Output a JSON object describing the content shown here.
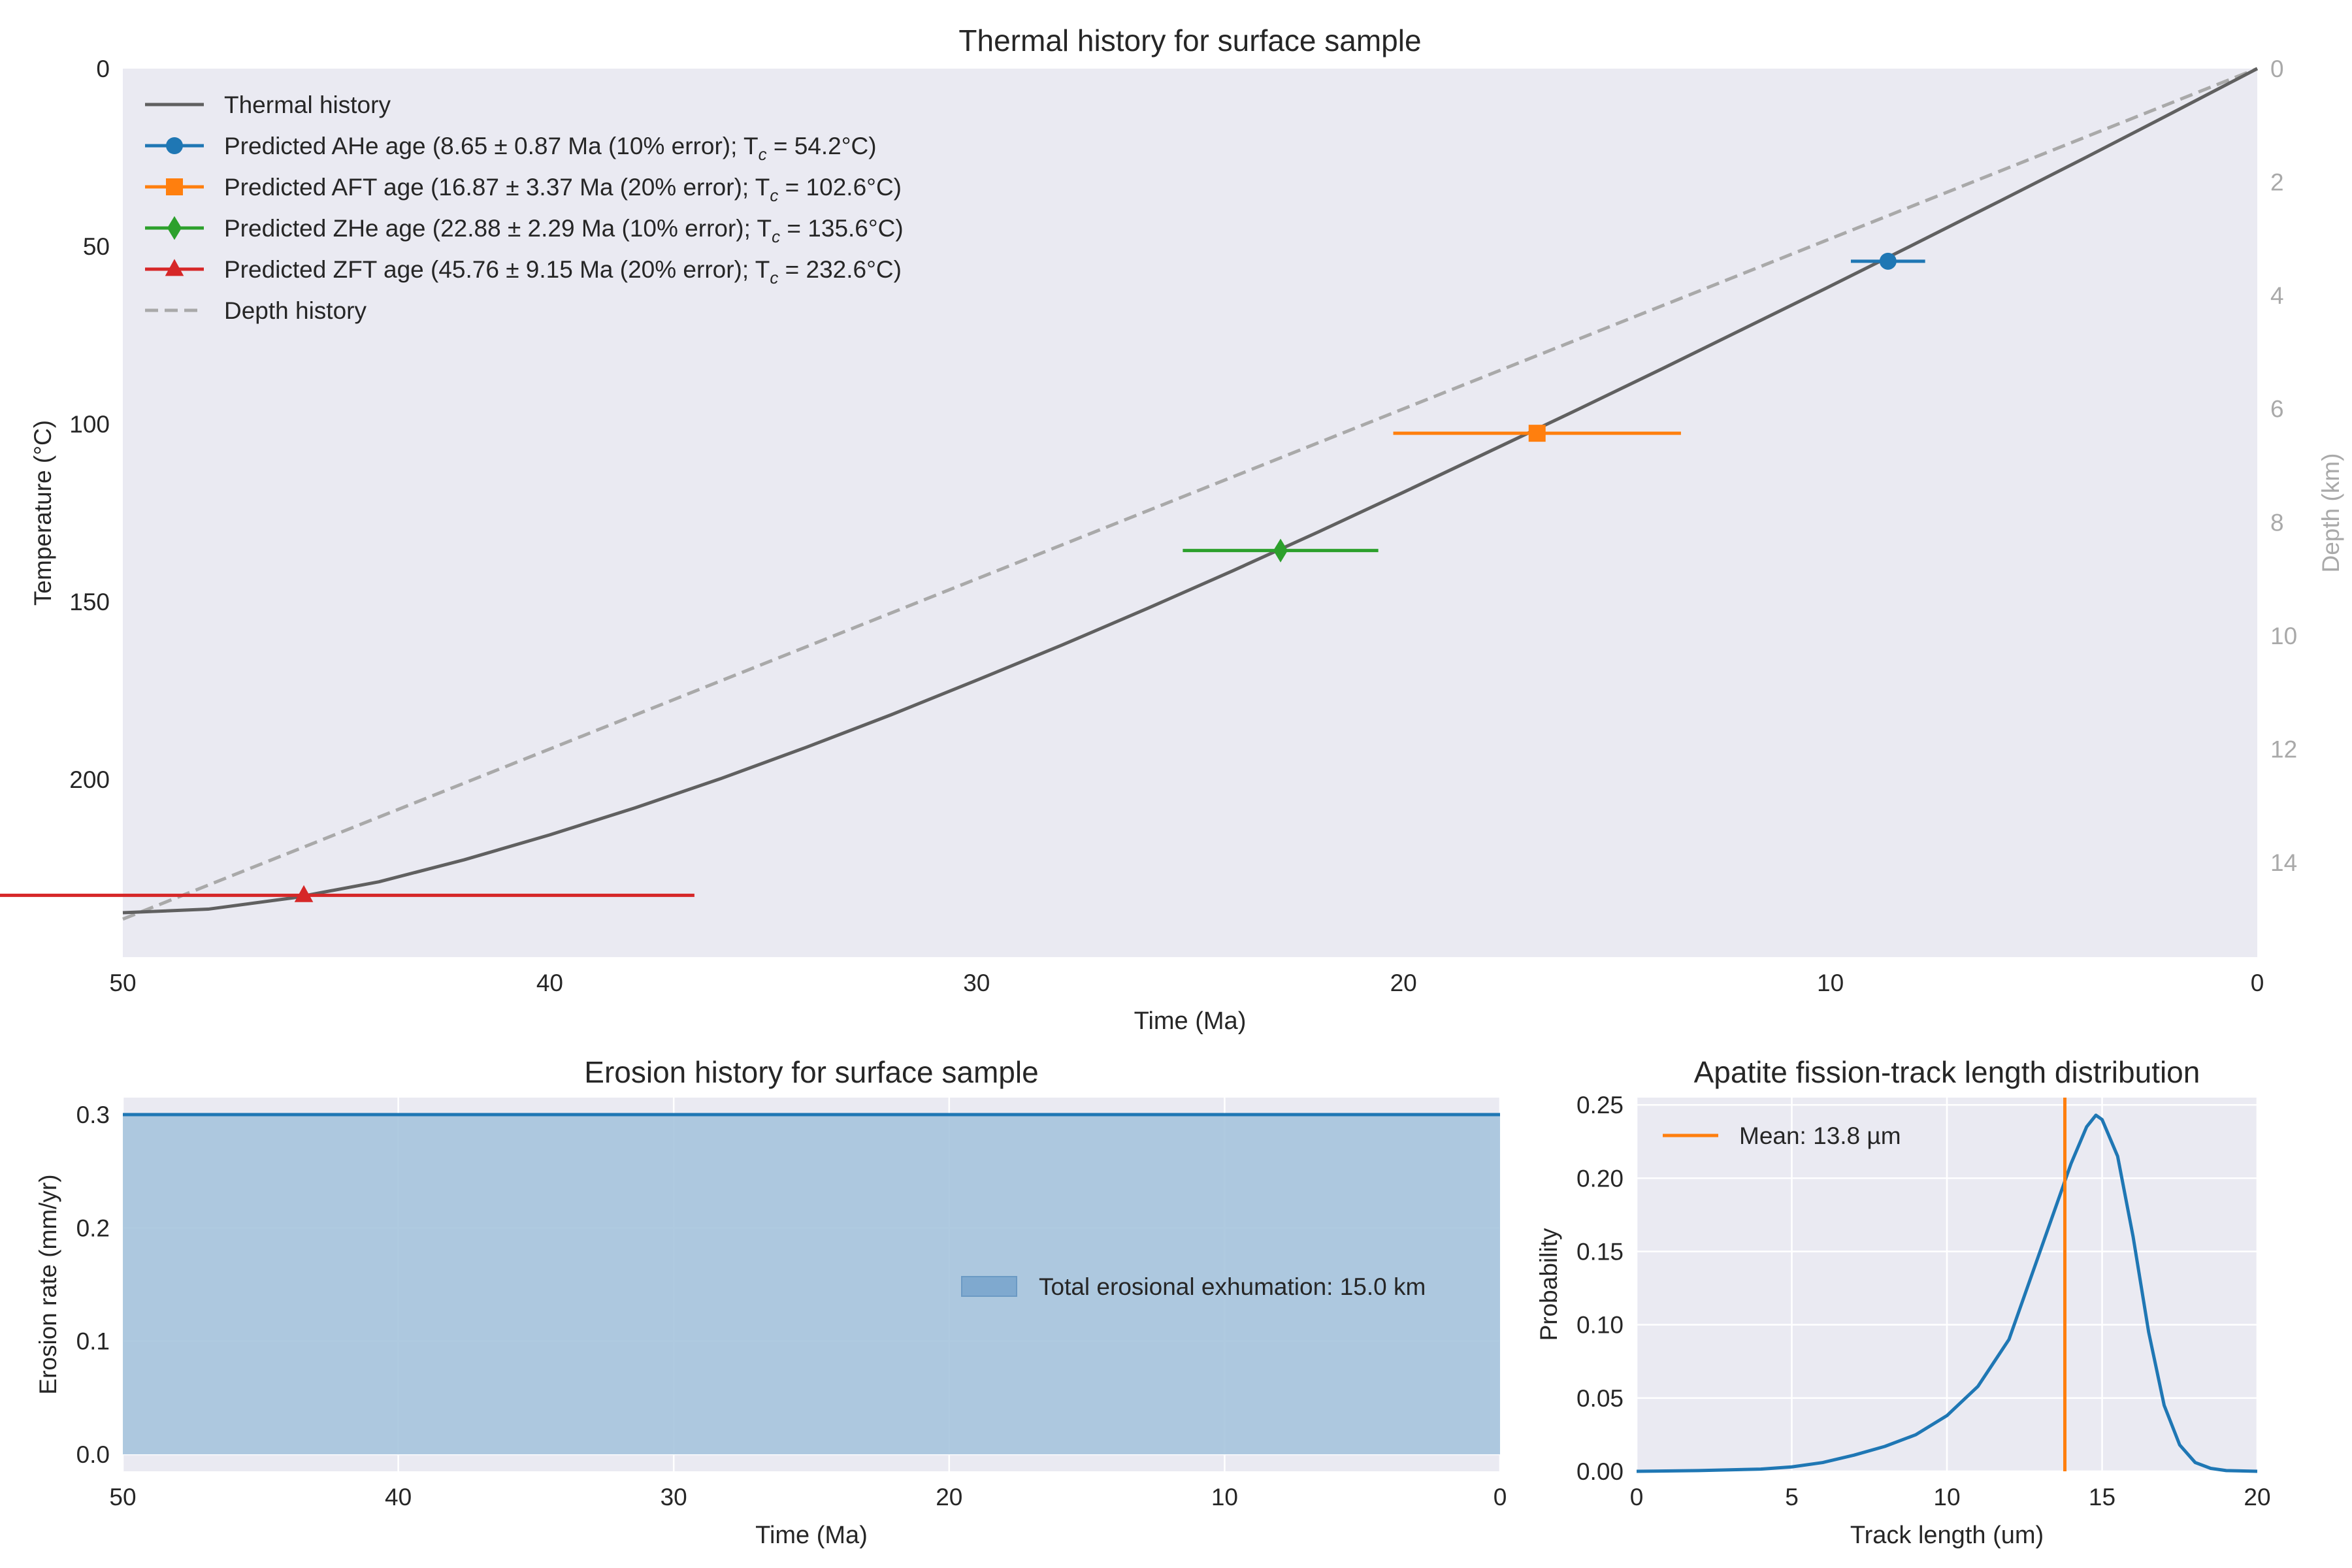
{
  "colors": {
    "panel_bg": "#eaeaf2",
    "grid": "#ffffff",
    "text": "#262626",
    "thermal_line": "#606060",
    "depth_line": "#a9a9a9",
    "depth_axis_text": "#a9a9a9",
    "ahe": "#1f77b4",
    "aft": "#ff7f0e",
    "zhe": "#2ca02c",
    "zft": "#d62728",
    "erosion_line": "#1f77b4",
    "erosion_fill": "#a6c4dd",
    "track_line": "#1f77b4",
    "mean_line": "#ff7f0e"
  },
  "chart_data": [
    {
      "type": "line",
      "title": "Thermal history for surface sample",
      "xlabel": "Time (Ma)",
      "ylabel": "Temperature (°C)",
      "y2label": "Depth (km)",
      "xlim": [
        50,
        0
      ],
      "ylim": [
        250,
        0
      ],
      "y2lim": [
        15.67,
        0
      ],
      "xticks": [
        50,
        40,
        30,
        20,
        10,
        0
      ],
      "yticks": [
        0,
        50,
        100,
        150,
        200
      ],
      "y2ticks": [
        0,
        2,
        4,
        6,
        8,
        10,
        12,
        14
      ],
      "grid": false,
      "legend_position": "upper-left",
      "series": [
        {
          "name": "Thermal history",
          "style": "solid",
          "x": [
            50,
            48,
            46,
            44,
            42,
            40,
            38,
            36,
            34,
            32,
            30,
            28,
            26,
            24,
            22,
            20,
            18,
            16,
            14,
            12,
            10,
            8,
            6,
            4,
            2,
            0
          ],
          "y": [
            237.5,
            236.5,
            233.3,
            228.8,
            222.6,
            215.6,
            208.0,
            199.8,
            191.0,
            181.8,
            172.1,
            162.2,
            151.9,
            141.3,
            130.4,
            119.2,
            107.8,
            96.4,
            84.8,
            73.0,
            61.2,
            49.2,
            37.1,
            24.9,
            12.5,
            0
          ]
        },
        {
          "name": "Predicted AHe age",
          "legend_label": "Predicted AHe age (8.65 ± 0.87 Ma (10% error); T",
          "legend_suffix": " = 54.2°C)",
          "marker": "circle",
          "age": 8.65,
          "error": 0.87,
          "tc": 54.2
        },
        {
          "name": "Predicted AFT age",
          "legend_label": "Predicted AFT age (16.87 ± 3.37 Ma (20% error); T",
          "legend_suffix": " = 102.6°C)",
          "marker": "square",
          "age": 16.87,
          "error": 3.37,
          "tc": 102.6
        },
        {
          "name": "Predicted ZHe age",
          "legend_label": "Predicted ZHe age (22.88 ± 2.29 Ma (10% error); T",
          "legend_suffix": " = 135.6°C)",
          "marker": "diamond",
          "age": 22.88,
          "error": 2.29,
          "tc": 135.6
        },
        {
          "name": "Predicted ZFT age",
          "legend_label": "Predicted ZFT age (45.76 ± 9.15 Ma (20% error); T",
          "legend_suffix": " = 232.6°C)",
          "marker": "triangle",
          "age": 45.76,
          "error": 9.15,
          "tc": 232.6
        },
        {
          "name": "Depth history",
          "style": "dashed",
          "axis": "y2",
          "x": [
            50,
            0
          ],
          "y": [
            15.0,
            0.0
          ]
        }
      ],
      "tc_subscript": "c"
    },
    {
      "type": "area",
      "title": "Erosion history for surface sample",
      "xlabel": "Time (Ma)",
      "ylabel": "Erosion rate (mm/yr)",
      "xlim": [
        50,
        0
      ],
      "ylim": [
        -0.015,
        0.315
      ],
      "xticks": [
        50,
        40,
        30,
        20,
        10,
        0
      ],
      "yticks": [
        0.0,
        0.1,
        0.2,
        0.3
      ],
      "grid": true,
      "legend_position": "center-right",
      "series": [
        {
          "name": "Total erosional exhumation: 15.0 km",
          "x": [
            50,
            0
          ],
          "y": [
            0.3,
            0.3
          ]
        }
      ]
    },
    {
      "type": "line",
      "title": "Apatite fission-track length distribution",
      "xlabel": "Track length (um)",
      "ylabel": "Probability",
      "xlim": [
        0,
        20
      ],
      "ylim": [
        0,
        0.255
      ],
      "xticks": [
        0,
        5,
        10,
        15,
        20
      ],
      "yticks": [
        0.0,
        0.05,
        0.1,
        0.15,
        0.2,
        0.25
      ],
      "grid": true,
      "legend_position": "upper-left",
      "series": [
        {
          "name": "track-length-pdf",
          "x": [
            0,
            2,
            4,
            5,
            6,
            7,
            8,
            9,
            10,
            11,
            12,
            13,
            13.5,
            14,
            14.5,
            14.8,
            15,
            15.5,
            16,
            16.5,
            17,
            17.5,
            18,
            18.5,
            19,
            20
          ],
          "y": [
            0,
            0.0005,
            0.0015,
            0.003,
            0.006,
            0.011,
            0.017,
            0.025,
            0.038,
            0.058,
            0.09,
            0.15,
            0.18,
            0.21,
            0.235,
            0.243,
            0.24,
            0.215,
            0.16,
            0.095,
            0.045,
            0.018,
            0.006,
            0.002,
            0.0005,
            0
          ]
        },
        {
          "name": "Mean: 13.8 µm",
          "type": "vline",
          "x": 13.8
        }
      ]
    }
  ]
}
